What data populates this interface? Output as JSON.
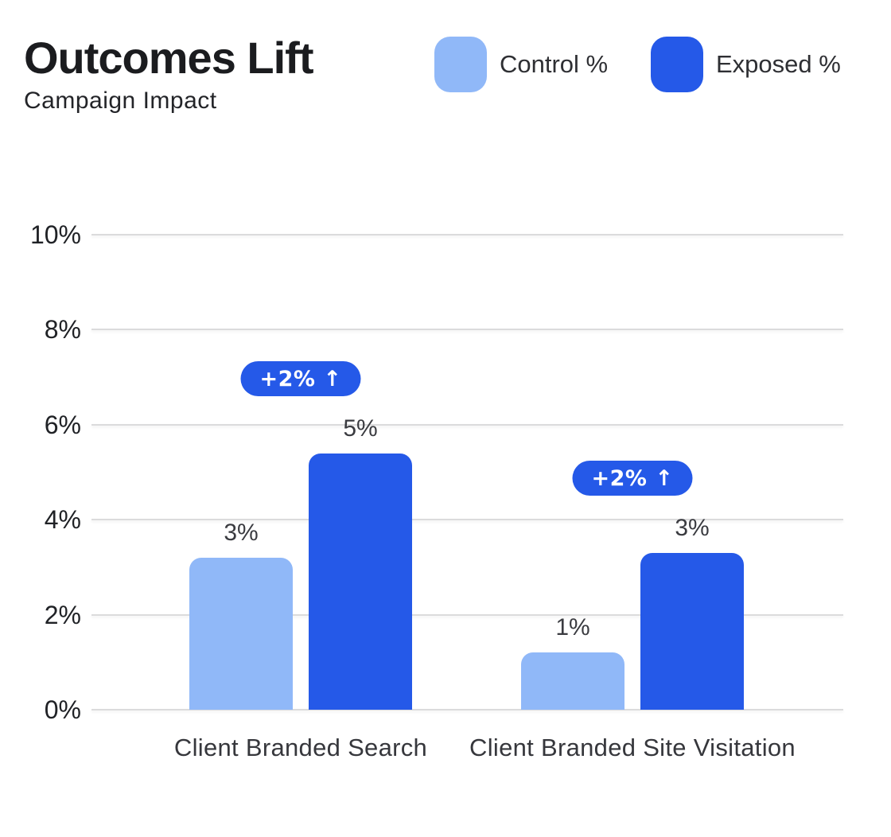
{
  "header": {
    "title": "Outcomes Lift",
    "subtitle": "Campaign Impact"
  },
  "legend": {
    "items": [
      {
        "label": "Control %",
        "color": "#90B8F8"
      },
      {
        "label": "Exposed %",
        "color": "#2559E8"
      }
    ]
  },
  "colors": {
    "background": "#FFFFFF",
    "control": "#90B8F8",
    "exposed": "#2559E8",
    "badge_bg": "#2559E8",
    "badge_text": "#FFFFFF",
    "gridline": "#DBDBDC",
    "title_text": "#1B1C1F",
    "subtitle_text": "#232428",
    "axis_text": "#202226",
    "value_text": "#3A3B40",
    "category_text": "#36373C"
  },
  "chart_data": {
    "type": "bar",
    "title": "Outcomes Lift",
    "subtitle": "Campaign Impact",
    "categories": [
      "Client Branded Search",
      "Client Branded Site Visitation"
    ],
    "series": [
      {
        "name": "Control %",
        "color": "#90B8F8",
        "values": [
          3.2,
          1.2
        ],
        "labels": [
          "3%",
          "1%"
        ]
      },
      {
        "name": "Exposed %",
        "color": "#2559E8",
        "values": [
          5.4,
          3.3
        ],
        "labels": [
          "5%",
          "3%"
        ]
      }
    ],
    "annotations": [
      {
        "category": "Client Branded Search",
        "label": "+2% ↑"
      },
      {
        "category": "Client Branded Site Visitation",
        "label": "+2% ↑"
      }
    ],
    "xlabel": "",
    "ylabel": "",
    "ylim": [
      0,
      10
    ],
    "yticks": {
      "values": [
        10,
        8,
        6,
        4,
        2,
        0
      ],
      "labels": [
        "10%",
        "8%",
        "6%",
        "4%",
        "2%",
        "0%"
      ]
    },
    "grid": "horizontal",
    "legend_position": "top-right"
  }
}
